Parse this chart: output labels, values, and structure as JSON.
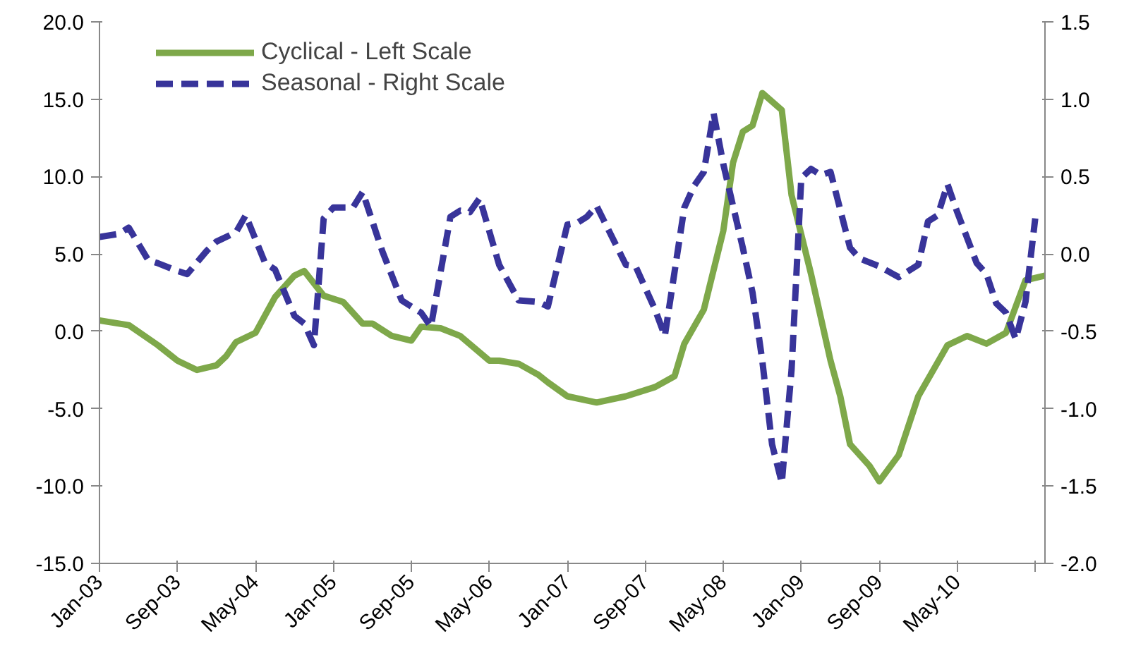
{
  "chart_data": {
    "type": "line",
    "xlim": [
      "2003-01",
      "2011-02"
    ],
    "xticks": [
      {
        "value": "2003-01",
        "label": "Jan-03"
      },
      {
        "value": "2003-09",
        "label": "Sep-03"
      },
      {
        "value": "2004-05",
        "label": "May-04"
      },
      {
        "value": "2005-01",
        "label": "Jan-05"
      },
      {
        "value": "2005-09",
        "label": "Sep-05"
      },
      {
        "value": "2006-05",
        "label": "May-06"
      },
      {
        "value": "2007-01",
        "label": "Jan-07"
      },
      {
        "value": "2007-09",
        "label": "Sep-07"
      },
      {
        "value": "2008-05",
        "label": "May-08"
      },
      {
        "value": "2009-01",
        "label": "Jan-09"
      },
      {
        "value": "2009-09",
        "label": "Sep-09"
      },
      {
        "value": "2010-05",
        "label": "May-10"
      },
      {
        "value": "2011-01",
        "label": null
      }
    ],
    "ylim": [
      -15,
      20
    ],
    "yticks": [
      {
        "value": -15,
        "label": "-15.0"
      },
      {
        "value": -10,
        "label": "-10.0"
      },
      {
        "value": -5,
        "label": "-5.0"
      },
      {
        "value": 0,
        "label": "0.0"
      },
      {
        "value": 5,
        "label": "5.0"
      },
      {
        "value": 10,
        "label": "10.0"
      },
      {
        "value": 15,
        "label": "15.0"
      },
      {
        "value": 20,
        "label": "20.0"
      }
    ],
    "y2lim": [
      -2.0,
      1.5
    ],
    "y2ticks": [
      {
        "value": -2.0,
        "label": "-2.0"
      },
      {
        "value": -1.5,
        "label": "-1.5"
      },
      {
        "value": -1.0,
        "label": "-1.0"
      },
      {
        "value": -0.5,
        "label": "-0.5"
      },
      {
        "value": 0,
        "label": "0.0"
      },
      {
        "value": 0.5,
        "label": "0.5"
      },
      {
        "value": 1.0,
        "label": "1.0"
      },
      {
        "value": 1.5,
        "label": "1.5"
      }
    ],
    "legend": "top left",
    "series": [
      {
        "name": "Cyclical - Left Scale",
        "color": "#7ea84a",
        "line_style": "solid",
        "x": [
          "2003-01",
          "2003-04",
          "2003-07",
          "2003-09",
          "2003-11",
          "2004-01",
          "2004-02",
          "2004-03",
          "2004-05",
          "2004-07",
          "2004-09",
          "2004-10",
          "2004-12",
          "2005-02",
          "2005-04",
          "2005-05",
          "2005-07",
          "2005-09",
          "2005-10",
          "2005-12",
          "2006-02",
          "2006-05",
          "2006-06",
          "2006-08",
          "2006-10",
          "2006-11",
          "2007-01",
          "2007-04",
          "2007-07",
          "2007-10",
          "2007-12",
          "2008-01",
          "2008-03",
          "2008-05",
          "2008-06",
          "2008-07",
          "2008-08",
          "2008-09",
          "2008-11",
          "2008-12",
          "2009-02",
          "2009-04",
          "2009-05",
          "2009-06",
          "2009-08",
          "2009-09",
          "2009-11",
          "2010-01",
          "2010-04",
          "2010-06",
          "2010-08",
          "2010-10",
          "2010-12",
          "2011-02"
        ],
        "values": [
          0.7,
          0.4,
          -0.9,
          -1.9,
          -2.5,
          -2.2,
          -1.6,
          -0.7,
          -0.1,
          2.2,
          3.6,
          3.9,
          2.3,
          1.9,
          0.5,
          0.5,
          -0.3,
          -0.6,
          0.3,
          0.2,
          -0.3,
          -1.9,
          -1.9,
          -2.1,
          -2.8,
          -3.3,
          -4.2,
          -4.6,
          -4.2,
          -3.6,
          -2.9,
          -0.8,
          1.4,
          6.5,
          10.9,
          12.9,
          13.3,
          15.4,
          14.3,
          8.8,
          3.7,
          -1.9,
          -4.2,
          -7.3,
          -8.7,
          -9.7,
          -8.0,
          -4.2,
          -0.9,
          -0.3,
          -0.8,
          -0.1,
          3.3,
          3.6
        ]
      },
      {
        "name": "Seasonal - Right Scale",
        "color": "#38349a",
        "line_style": "dashed",
        "axis": "y2",
        "x": [
          "2003-01",
          "2003-03",
          "2003-04",
          "2003-06",
          "2003-07",
          "2003-09",
          "2003-10",
          "2003-12",
          "2004-01",
          "2004-03",
          "2004-04",
          "2004-06",
          "2004-07",
          "2004-09",
          "2004-10",
          "2004-11",
          "2004-12",
          "2005-01",
          "2005-03",
          "2005-04",
          "2005-06",
          "2005-08",
          "2005-10",
          "2005-11",
          "2006-01",
          "2006-02",
          "2006-03",
          "2006-04",
          "2006-06",
          "2006-08",
          "2006-10",
          "2006-11",
          "2007-01",
          "2007-02",
          "2007-03",
          "2007-04",
          "2007-07",
          "2007-08",
          "2007-10",
          "2007-11",
          "2008-01",
          "2008-02",
          "2008-03",
          "2008-04",
          "2008-05",
          "2008-07",
          "2008-08",
          "2008-09",
          "2008-10",
          "2008-11",
          "2008-12",
          "2009-01",
          "2009-02",
          "2009-03",
          "2009-04",
          "2009-06",
          "2009-07",
          "2009-09",
          "2009-11",
          "2010-01",
          "2010-02",
          "2010-03",
          "2010-04",
          "2010-05",
          "2010-07",
          "2010-08",
          "2010-09",
          "2010-10",
          "2010-11",
          "2010-12",
          "2011-01"
        ],
        "values": [
          0.11,
          0.13,
          0.17,
          -0.04,
          -0.06,
          -0.11,
          -0.13,
          0.02,
          0.08,
          0.14,
          0.25,
          -0.06,
          -0.1,
          -0.4,
          -0.45,
          -0.59,
          0.23,
          0.3,
          0.3,
          0.4,
          0.02,
          -0.3,
          -0.38,
          -0.47,
          0.24,
          0.28,
          0.27,
          0.36,
          -0.07,
          -0.3,
          -0.31,
          -0.34,
          0.19,
          0.2,
          0.24,
          0.31,
          -0.07,
          -0.08,
          -0.36,
          -0.53,
          0.3,
          0.44,
          0.53,
          0.91,
          0.58,
          0.04,
          -0.25,
          -0.69,
          -1.23,
          -1.48,
          -0.75,
          0.49,
          0.55,
          0.51,
          0.53,
          0.04,
          -0.03,
          -0.08,
          -0.15,
          -0.07,
          0.21,
          0.25,
          0.45,
          0.27,
          -0.06,
          -0.13,
          -0.32,
          -0.38,
          -0.55,
          -0.31,
          0.23
        ]
      }
    ]
  }
}
